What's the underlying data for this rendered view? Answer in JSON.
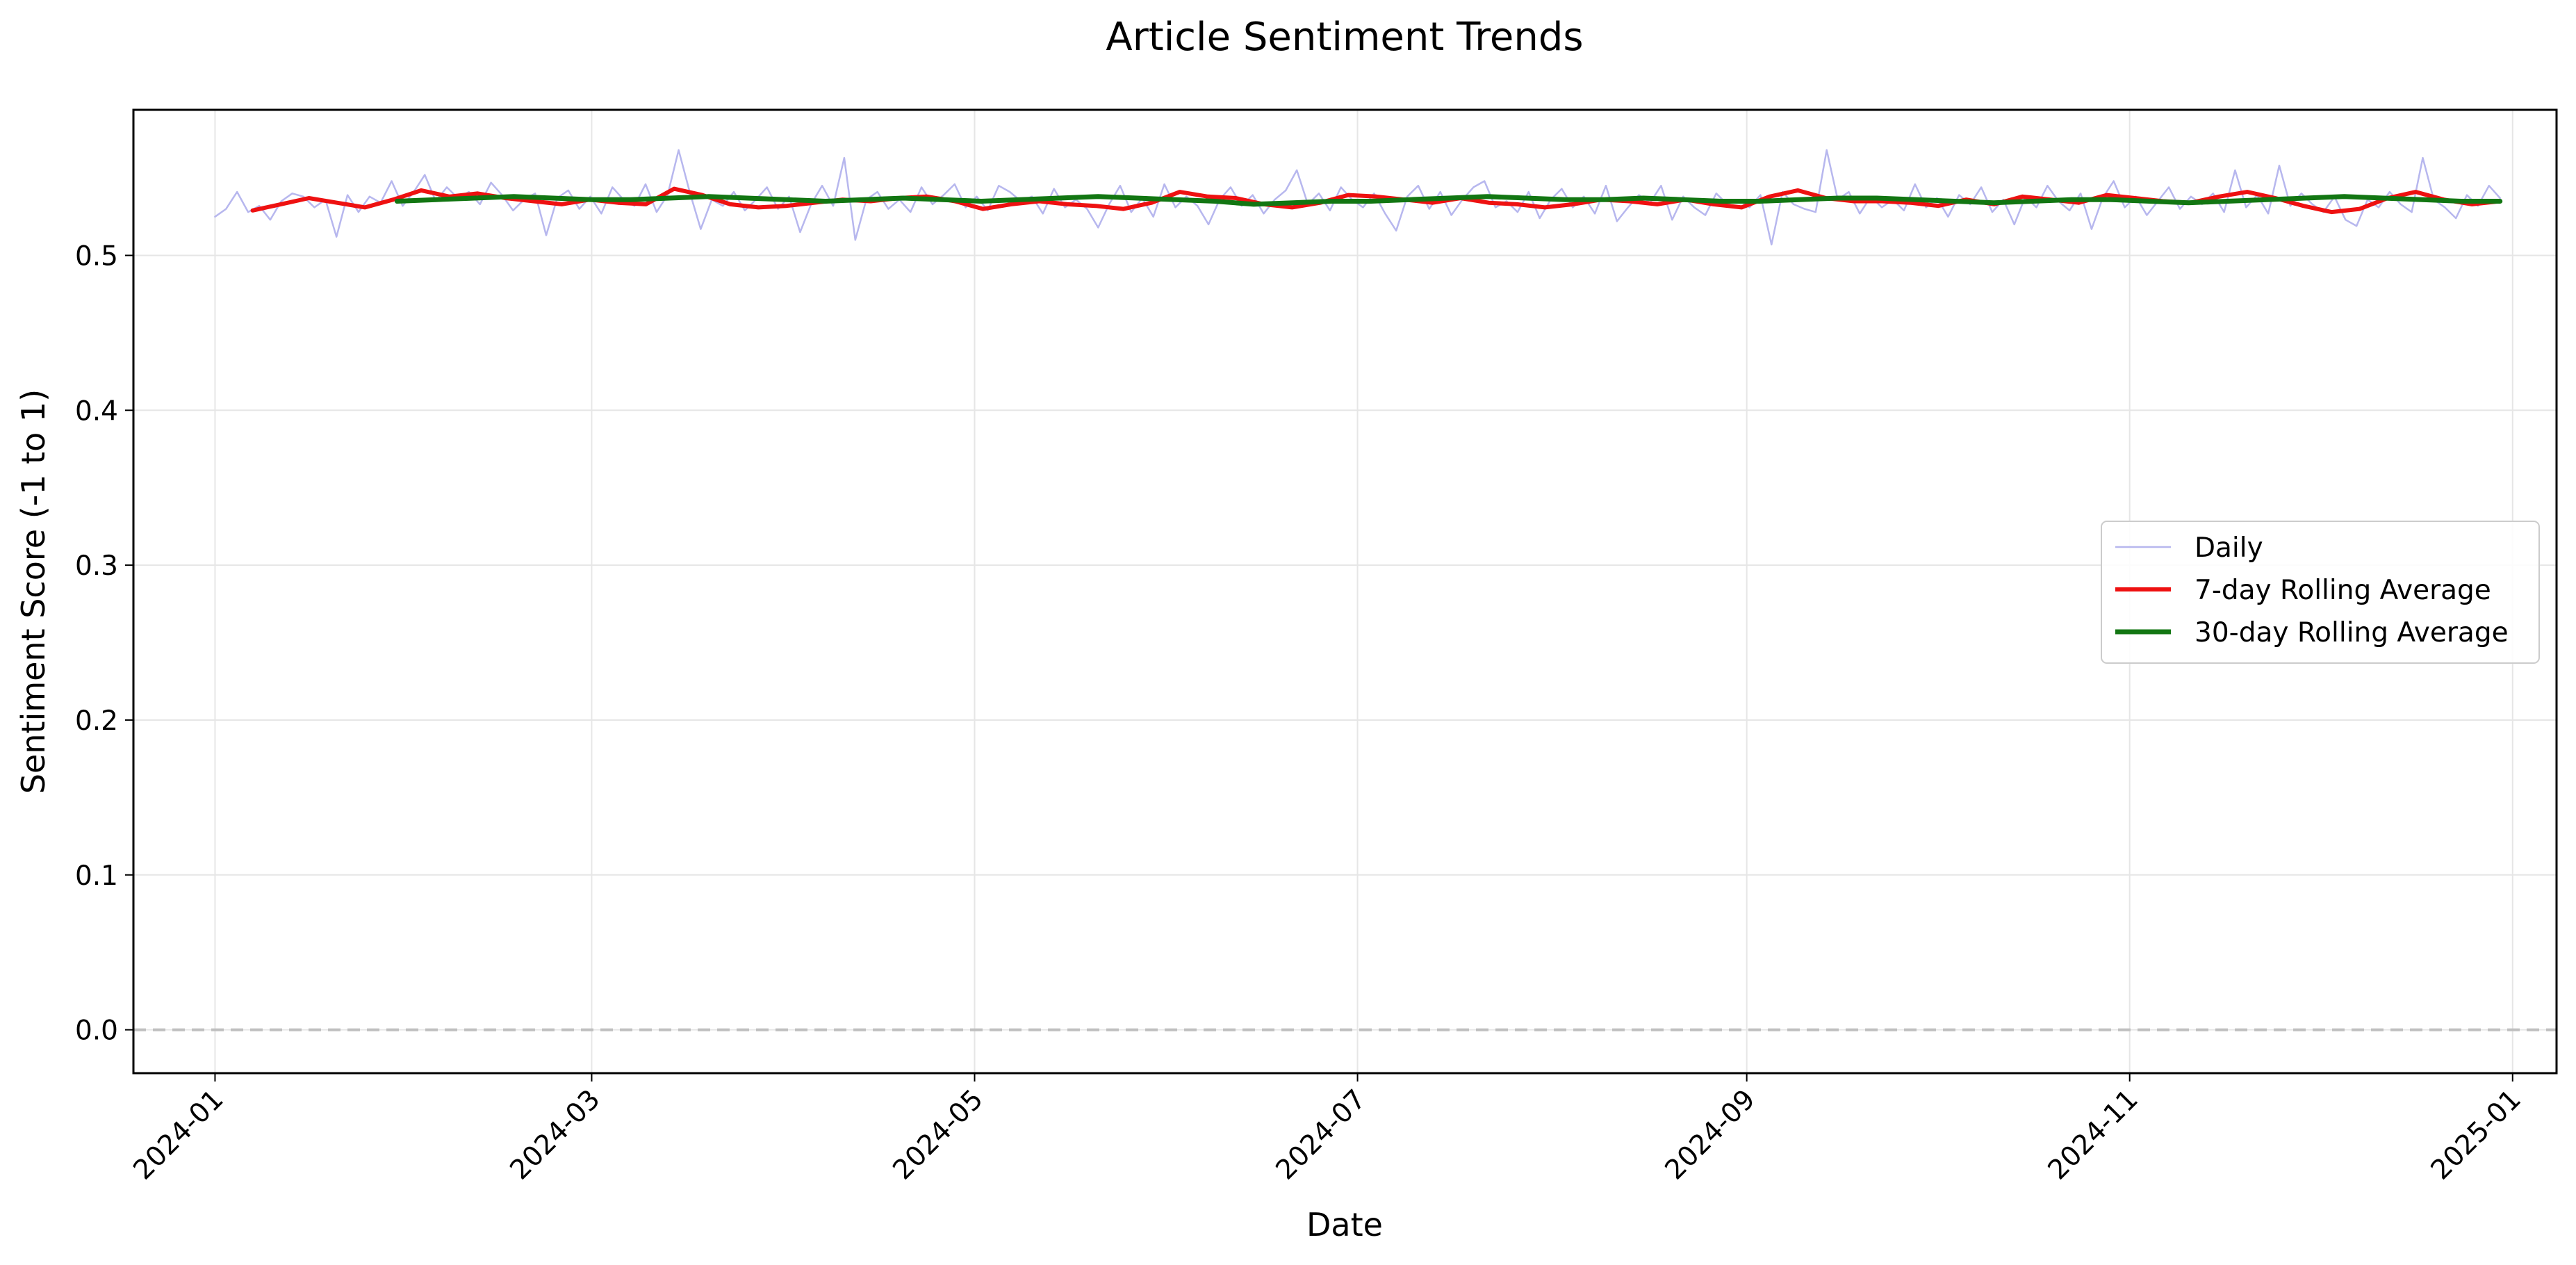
{
  "chart_data": {
    "type": "line",
    "title": "Article Sentiment Trends",
    "xlabel": "Date",
    "ylabel": "Sentiment Score (-1 to 1)",
    "x_start": "2024-01-01",
    "x_end": "2024-12-30",
    "xlim": [
      "2023-12-19",
      "2025-01-08"
    ],
    "ylim": [
      -0.028,
      0.594
    ],
    "yticks": [
      0.0,
      0.1,
      0.2,
      0.3,
      0.4,
      0.5
    ],
    "ytick_labels": [
      "0.0",
      "0.1",
      "0.2",
      "0.3",
      "0.4",
      "0.5"
    ],
    "xticks": [
      "2024-01-01",
      "2024-03-01",
      "2024-05-01",
      "2024-07-01",
      "2024-09-01",
      "2024-11-01",
      "2025-01-01"
    ],
    "xtick_labels": [
      "2024-01",
      "2024-03",
      "2024-05",
      "2024-07",
      "2024-09",
      "2024-11",
      "2025-01"
    ],
    "grid": true,
    "reference_line": {
      "y": 0.0,
      "style": "dashed",
      "color": "#bfbfbf"
    },
    "legend": {
      "placement": "center-right"
    },
    "daily_anchors": [
      0.525,
      0.53,
      0.541,
      0.528,
      0.532,
      0.523,
      0.535,
      0.54,
      0.538,
      0.531,
      0.536,
      0.512,
      0.539,
      0.528,
      0.538,
      0.534,
      0.548,
      0.532,
      0.541,
      0.552,
      0.535,
      0.544,
      0.537,
      0.541,
      0.533,
      0.547,
      0.539,
      0.529,
      0.536,
      0.54,
      0.513,
      0.537,
      0.542,
      0.53,
      0.538,
      0.527,
      0.544,
      0.536,
      0.532,
      0.546,
      0.528,
      0.539,
      0.568,
      0.541,
      0.517,
      0.536,
      0.532,
      0.541,
      0.529,
      0.536,
      0.544,
      0.53,
      0.538,
      0.515,
      0.533,
      0.545,
      0.532,
      0.563,
      0.51,
      0.536,
      0.541,
      0.53,
      0.536,
      0.528,
      0.544,
      0.533,
      0.539,
      0.546,
      0.531,
      0.538,
      0.529,
      0.545,
      0.541,
      0.535,
      0.538,
      0.527,
      0.543,
      0.531,
      0.536,
      0.53,
      0.518,
      0.533,
      0.545,
      0.528,
      0.537,
      0.525,
      0.546,
      0.531,
      0.538,
      0.532,
      0.52,
      0.536,
      0.544,
      0.532,
      0.539,
      0.527,
      0.536,
      0.542,
      0.555,
      0.533,
      0.54,
      0.529,
      0.544,
      0.536,
      0.531,
      0.54,
      0.527,
      0.516,
      0.538,
      0.545,
      0.53,
      0.541,
      0.526,
      0.536,
      0.544,
      0.548,
      0.531,
      0.535,
      0.528,
      0.541,
      0.524,
      0.536,
      0.543,
      0.531,
      0.538,
      0.527,
      0.545,
      0.522,
      0.531,
      0.539,
      0.534,
      0.545,
      0.523,
      0.538,
      0.531,
      0.526,
      0.54,
      0.533,
      0.536,
      0.531,
      0.539,
      0.507,
      0.541,
      0.533,
      0.53,
      0.528,
      0.568,
      0.536,
      0.541,
      0.527,
      0.538,
      0.531,
      0.536,
      0.529,
      0.546,
      0.531,
      0.537,
      0.525,
      0.539,
      0.533,
      0.544,
      0.528,
      0.536,
      0.52,
      0.538,
      0.531,
      0.545,
      0.535,
      0.529,
      0.54,
      0.517,
      0.537,
      0.548,
      0.531,
      0.538,
      0.526,
      0.535,
      0.544,
      0.53,
      0.538,
      0.533,
      0.54,
      0.528,
      0.555,
      0.531,
      0.539,
      0.527,
      0.558,
      0.532,
      0.54,
      0.533,
      0.528,
      0.538,
      0.523,
      0.519,
      0.536,
      0.531,
      0.541,
      0.533,
      0.528,
      0.563,
      0.536,
      0.531,
      0.524,
      0.539,
      0.532,
      0.545,
      0.537
    ],
    "rolling7_anchors": [
      0.529,
      0.533,
      0.537,
      0.534,
      0.531,
      0.536,
      0.542,
      0.538,
      0.54,
      0.537,
      0.535,
      0.533,
      0.536,
      0.534,
      0.533,
      0.543,
      0.539,
      0.533,
      0.531,
      0.532,
      0.534,
      0.536,
      0.535,
      0.537,
      0.538,
      0.535,
      0.53,
      0.533,
      0.535,
      0.533,
      0.532,
      0.53,
      0.534,
      0.541,
      0.538,
      0.537,
      0.533,
      0.531,
      0.534,
      0.539,
      0.538,
      0.536,
      0.534,
      0.537,
      0.534,
      0.533,
      0.531,
      0.533,
      0.536,
      0.535,
      0.533,
      0.536,
      0.533,
      0.531,
      0.538,
      0.542,
      0.537,
      0.535,
      0.535,
      0.534,
      0.532,
      0.536,
      0.533,
      0.538,
      0.536,
      0.534,
      0.539,
      0.537,
      0.535,
      0.534,
      0.538,
      0.541,
      0.537,
      0.532,
      0.528,
      0.53,
      0.537,
      0.541,
      0.536,
      0.533,
      0.535
    ],
    "rolling30_anchors": [
      0.535,
      0.536,
      0.537,
      0.538,
      0.537,
      0.536,
      0.536,
      0.537,
      0.538,
      0.537,
      0.536,
      0.535,
      0.536,
      0.537,
      0.536,
      0.535,
      0.536,
      0.537,
      0.538,
      0.537,
      0.536,
      0.535,
      0.533,
      0.534,
      0.535,
      0.535,
      0.536,
      0.537,
      0.538,
      0.537,
      0.536,
      0.536,
      0.537,
      0.536,
      0.535,
      0.535,
      0.536,
      0.537,
      0.537,
      0.536,
      0.535,
      0.534,
      0.535,
      0.536,
      0.536,
      0.535,
      0.534,
      0.535,
      0.536,
      0.537,
      0.538,
      0.537,
      0.536,
      0.535,
      0.535
    ],
    "series": [
      {
        "name": "Daily",
        "color": "#b7b7ee",
        "start": "2024-01-01",
        "end": "2024-12-30",
        "key": "daily_anchors"
      },
      {
        "name": "7-day Rolling Average",
        "color": "#ee1111",
        "start": "2024-01-07",
        "end": "2024-12-30",
        "key": "rolling7_anchors"
      },
      {
        "name": "30-day Rolling Average",
        "color": "#127612",
        "start": "2024-01-30",
        "end": "2024-12-30",
        "key": "rolling30_anchors"
      }
    ]
  }
}
